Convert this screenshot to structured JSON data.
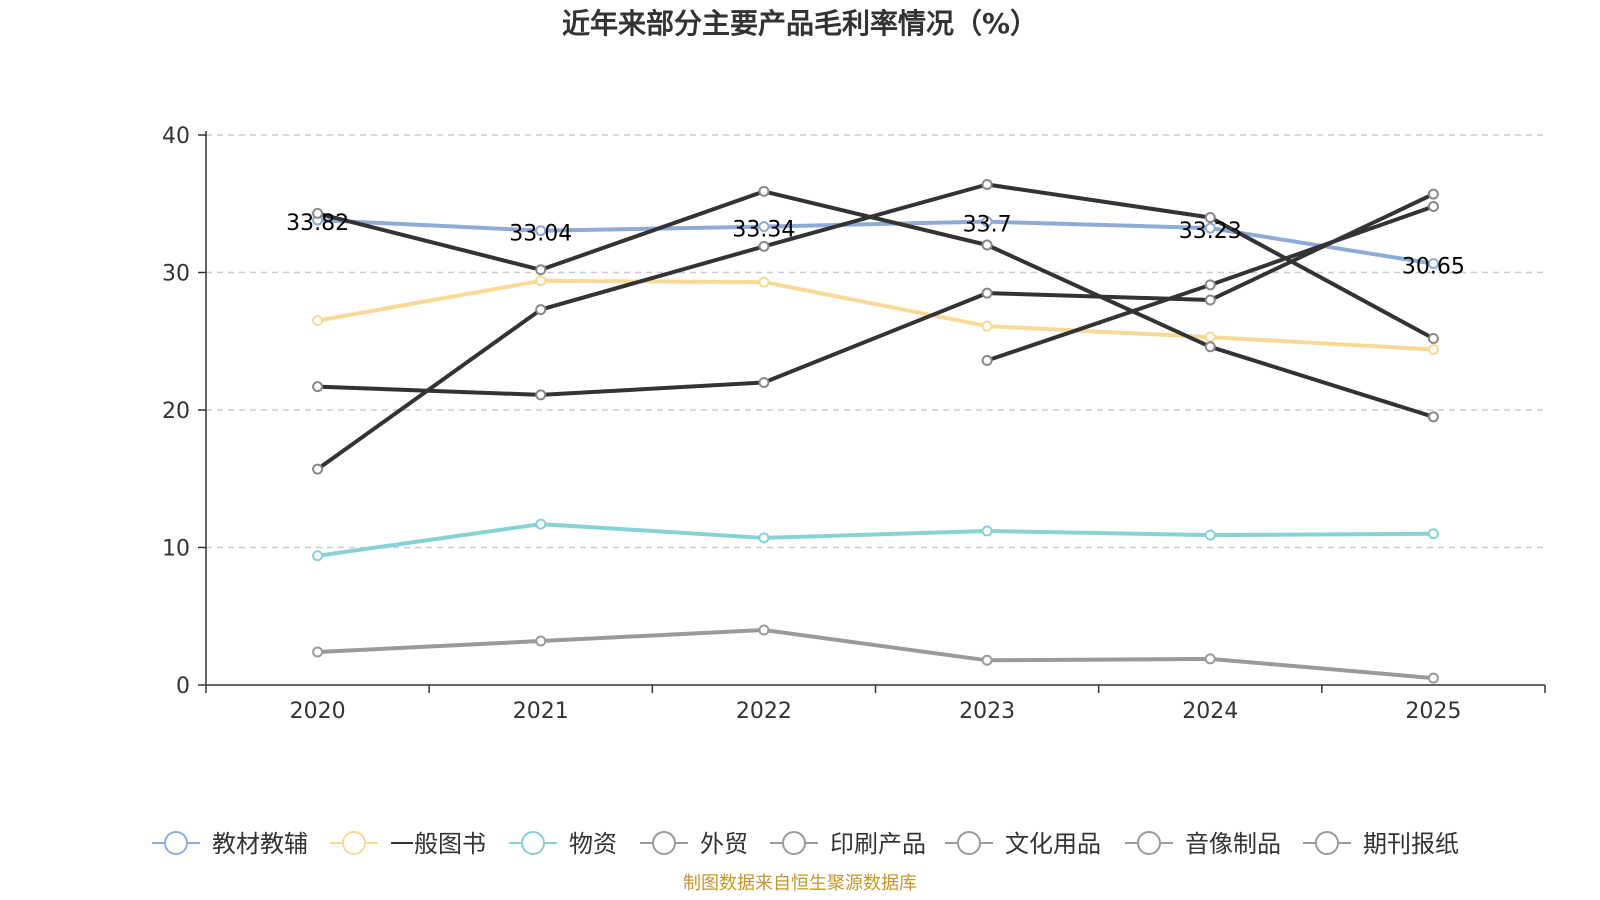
{
  "chart_data": {
    "type": "line",
    "title": "近年来部分主要产品毛利率情况（%）",
    "categories": [
      "2020",
      "2021",
      "2022",
      "2023",
      "2024",
      "2025"
    ],
    "ylim": [
      0,
      40
    ],
    "yticks": [
      0,
      10,
      20,
      30,
      40
    ],
    "grid": true,
    "legend_position": "bottom",
    "series": [
      {
        "name": "教材教辅",
        "color": "#8eabd8",
        "values": [
          33.82,
          33.04,
          33.34,
          33.7,
          33.23,
          30.65
        ],
        "labels": [
          "33.82",
          "33.04",
          "33.34",
          "33.7",
          "33.23",
          "30.65"
        ]
      },
      {
        "name": "一般图书",
        "color": "#f9d996",
        "values": [
          26.5,
          29.4,
          29.3,
          26.1,
          25.3,
          24.4
        ]
      },
      {
        "name": "物资",
        "color": "#86d2d4",
        "values": [
          9.4,
          11.7,
          10.7,
          11.2,
          10.9,
          11.0
        ]
      },
      {
        "name": "外贸",
        "color": "#9a9a9a",
        "values": [
          2.4,
          3.2,
          4.0,
          1.8,
          1.9,
          0.5
        ]
      },
      {
        "name": "印刷产品",
        "color": "#333333",
        "values": [
          21.7,
          21.1,
          22.0,
          28.5,
          28.0,
          35.7
        ]
      },
      {
        "name": "文化用品",
        "color": "#333333",
        "values": [
          15.7,
          27.3,
          31.9,
          36.4,
          34.0,
          25.2
        ]
      },
      {
        "name": "音像制品",
        "color": "#333333",
        "values": [
          null,
          null,
          null,
          23.6,
          29.1,
          34.8
        ]
      },
      {
        "name": "期刊报纸",
        "color": "#333333",
        "values": [
          34.3,
          30.2,
          35.9,
          32.0,
          24.6,
          19.5
        ]
      }
    ],
    "legend_colors": [
      "#8eabd8",
      "#f9d996",
      "#86d2d4",
      "#9a9a9a",
      "#9a9a9a",
      "#9a9a9a",
      "#9a9a9a",
      "#9a9a9a"
    ]
  },
  "source": "制图数据来自恒生聚源数据库"
}
